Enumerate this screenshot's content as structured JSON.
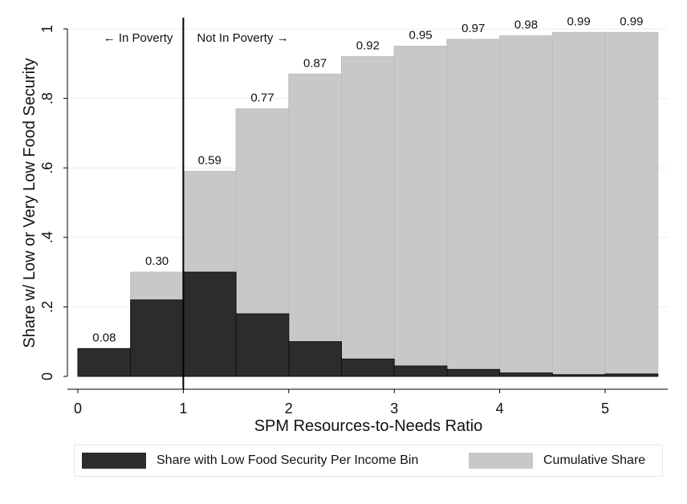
{
  "chart_data": {
    "type": "bar",
    "x_centers": [
      0.25,
      0.75,
      1.25,
      1.75,
      2.25,
      2.75,
      3.25,
      3.75,
      4.25,
      4.75,
      5.25
    ],
    "bin_width": 0.5,
    "series": [
      {
        "name": "Cumulative Share",
        "values": [
          0.08,
          0.3,
          0.59,
          0.77,
          0.87,
          0.92,
          0.95,
          0.97,
          0.98,
          0.99,
          0.99
        ],
        "labels": [
          "0.08",
          "0.30",
          "0.59",
          "0.77",
          "0.87",
          "0.92",
          "0.95",
          "0.97",
          "0.98",
          "0.99",
          "0.99"
        ],
        "color": "#c8c8c8"
      },
      {
        "name": "Share with Low Food Security Per Income Bin",
        "values": [
          0.08,
          0.22,
          0.3,
          0.18,
          0.1,
          0.05,
          0.03,
          0.02,
          0.01,
          0.005,
          0.007
        ],
        "color": "#2c2c2c"
      }
    ],
    "xlabel": "SPM Resources-to-Needs Ratio",
    "ylabel": "Share w/ Low or Very Low Food Security",
    "xlim": [
      -0.15,
      5.6
    ],
    "ylim": [
      0,
      1
    ],
    "xticks": [
      0,
      1,
      2,
      3,
      4,
      5
    ],
    "xtick_labels": [
      "0",
      "1",
      "2",
      "3",
      "4",
      "5"
    ],
    "yticks": [
      0,
      0.2,
      0.4,
      0.6,
      0.8,
      1
    ],
    "ytick_labels": [
      "0",
      ".2",
      ".4",
      ".6",
      ".8",
      "1"
    ],
    "grid": "horizontal",
    "reference_line": {
      "x": 1,
      "left_label": "← In Poverty",
      "right_label": "Not In Poverty →"
    },
    "legend_position": "bottom"
  }
}
